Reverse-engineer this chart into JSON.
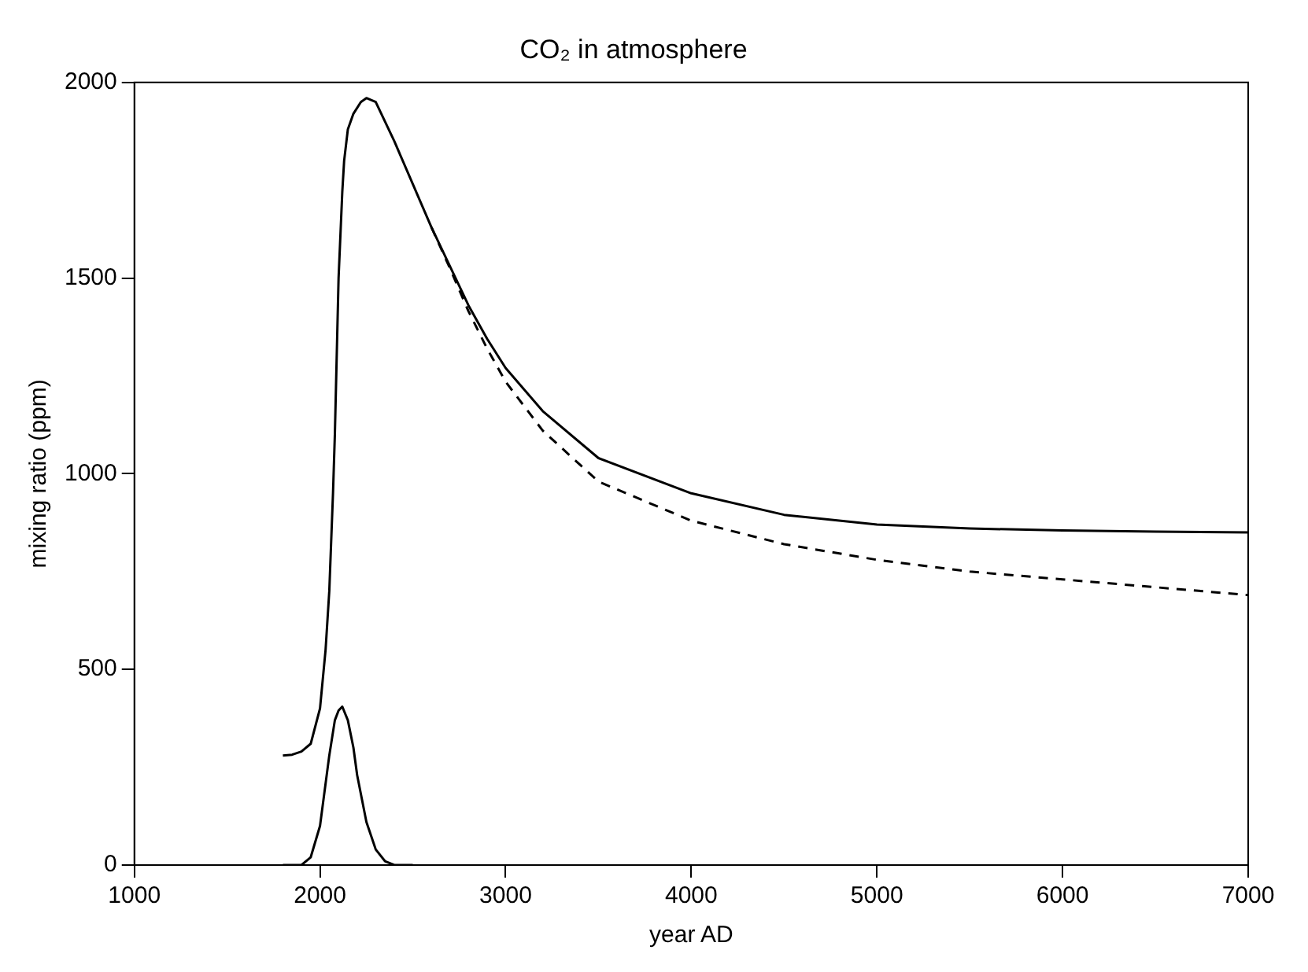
{
  "chart_data": {
    "type": "line",
    "title": "CO₂ in atmosphere",
    "xlabel": "year AD",
    "ylabel": "mixing ratio (ppm)",
    "xlim": [
      1000,
      7000
    ],
    "ylim": [
      0,
      2000
    ],
    "xticks": [
      1000,
      2000,
      3000,
      4000,
      5000,
      6000,
      7000
    ],
    "yticks": [
      0,
      500,
      1000,
      1500,
      2000
    ],
    "grid": false,
    "legend": false,
    "marker": "none",
    "series": [
      {
        "color": "#000000",
        "line_style": "solid",
        "x": [
          1800,
          1850,
          1900,
          1950,
          2000,
          2030,
          2050,
          2070,
          2080,
          2100,
          2120,
          2130,
          2150,
          2180,
          2220,
          2250,
          2300,
          2400,
          2500,
          2600,
          2700,
          2800,
          2900,
          3000,
          3200,
          3500,
          4000,
          4500,
          5000,
          5500,
          6000,
          6500,
          7000
        ],
        "values": [
          280,
          282,
          290,
          310,
          400,
          550,
          700,
          950,
          1100,
          1500,
          1720,
          1800,
          1880,
          1920,
          1950,
          1960,
          1950,
          1850,
          1740,
          1630,
          1530,
          1430,
          1345,
          1270,
          1160,
          1040,
          950,
          895,
          870,
          860,
          855,
          852,
          850
        ]
      },
      {
        "color": "#000000",
        "line_style": "dashed",
        "x": [
          2600,
          2700,
          2800,
          2900,
          3000,
          3200,
          3500,
          4000,
          4500,
          5000,
          5500,
          6000,
          6500,
          7000
        ],
        "values": [
          1630,
          1525,
          1415,
          1320,
          1235,
          1110,
          980,
          880,
          820,
          780,
          750,
          730,
          710,
          690
        ]
      },
      {
        "color": "#000000",
        "line_style": "solid",
        "x": [
          1800,
          1900,
          1950,
          2000,
          2050,
          2080,
          2100,
          2120,
          2150,
          2180,
          2200,
          2250,
          2300,
          2350,
          2400,
          2500
        ],
        "values": [
          0,
          0,
          20,
          100,
          280,
          370,
          395,
          405,
          370,
          300,
          230,
          110,
          40,
          10,
          0,
          0
        ]
      }
    ]
  }
}
